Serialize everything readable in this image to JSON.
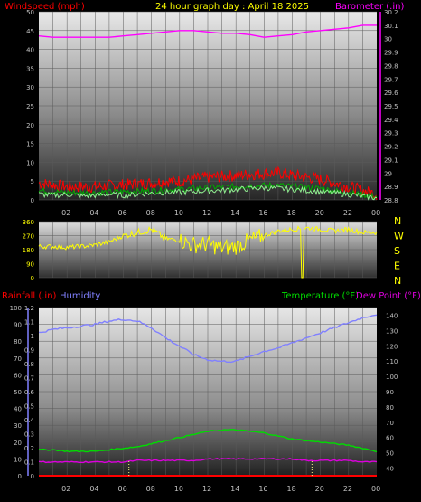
{
  "header": {
    "title": "24 hour graph day : April 18 2025",
    "wind_label": "Windspeed (mph)",
    "baro_label": "Barometer (.in)"
  },
  "lower_header": {
    "rain_label": "Rainfall (.in)",
    "humidity_label": "Humidity",
    "temp_label": "Temperature (°F)",
    "dew_label": "Dew Point (°F)"
  },
  "colors": {
    "wind": "#ff0000",
    "gust": "#ff0000",
    "wind_avg": "#90ee90",
    "baro": "#ff00ff",
    "direction": "#ffff00",
    "humidity": "#8080ff",
    "temperature": "#00dd00",
    "dew": "#dd00dd",
    "rain": "#ff0000",
    "axis_text": "#ffff00",
    "tick_text": "#c0c0c0"
  },
  "x_labels": [
    "02",
    "04",
    "06",
    "08",
    "10",
    "12",
    "14",
    "16",
    "18",
    "20",
    "22",
    "00"
  ],
  "compass": [
    "N",
    "W",
    "S",
    "E",
    "N"
  ],
  "chart_data": [
    {
      "type": "line",
      "name": "wind-barometer",
      "ylabel": "Windspeed (mph)",
      "y2label": "Barometer (.in)",
      "ylim": [
        0,
        50
      ],
      "y2lim": [
        28.8,
        30.2
      ],
      "yticks": [
        0,
        5,
        10,
        15,
        20,
        25,
        30,
        35,
        40,
        45,
        50
      ],
      "y2ticks": [
        "28.8",
        "28.9",
        "29",
        "29.1",
        "29.2",
        "29.3",
        "29.4",
        "29.5",
        "29.6",
        "29.7",
        "29.8",
        "29.9",
        "30",
        "30.1",
        "30.2"
      ],
      "hours": [
        0,
        1,
        2,
        3,
        4,
        5,
        6,
        7,
        8,
        9,
        10,
        11,
        12,
        13,
        14,
        15,
        16,
        17,
        18,
        19,
        20,
        21,
        22,
        23,
        24
      ],
      "series": [
        {
          "key": "barometer",
          "axis": "right",
          "values": [
            30.02,
            30.01,
            30.01,
            30.01,
            30.01,
            30.01,
            30.02,
            30.03,
            30.04,
            30.05,
            30.06,
            30.06,
            30.05,
            30.04,
            30.04,
            30.03,
            30.01,
            30.02,
            30.03,
            30.05,
            30.06,
            30.07,
            30.08,
            30.1,
            30.1
          ]
        },
        {
          "key": "gust",
          "axis": "left",
          "values": [
            4.5,
            4,
            3.5,
            3.5,
            3.5,
            3.8,
            4,
            4.2,
            4.5,
            5,
            5,
            5.5,
            6,
            6.2,
            6.5,
            6.8,
            7,
            7.2,
            6.5,
            6,
            5.5,
            4.5,
            3.5,
            2.5,
            1.5
          ]
        },
        {
          "key": "avg",
          "axis": "left",
          "values": [
            1.5,
            1.2,
            1.5,
            1,
            1.2,
            1.5,
            1.2,
            1.5,
            1.8,
            2,
            2,
            2.2,
            2.5,
            2.5,
            2.8,
            3,
            3.2,
            3,
            2.8,
            2.5,
            2.2,
            1.8,
            1.5,
            1,
            0.5
          ]
        }
      ]
    },
    {
      "type": "line",
      "name": "wind-direction",
      "ylim": [
        0,
        360
      ],
      "yticks": [
        0,
        90,
        180,
        270,
        360
      ],
      "hours": [
        0,
        1,
        2,
        3,
        4,
        5,
        6,
        7,
        8,
        9,
        10,
        11,
        12,
        13,
        14,
        15,
        16,
        17,
        18,
        19,
        20,
        21,
        22,
        23,
        24
      ],
      "values": [
        200,
        200,
        195,
        200,
        210,
        230,
        270,
        290,
        310,
        250,
        240,
        210,
        215,
        190,
        200,
        240,
        270,
        300,
        310,
        320,
        310,
        300,
        310,
        290,
        290
      ]
    },
    {
      "type": "line",
      "name": "rain-humidity-temperature",
      "ylabel": "Humidity",
      "y2label": "Temperature (°F)",
      "ylim": [
        0,
        100
      ],
      "yticks": [
        0,
        10,
        20,
        30,
        40,
        50,
        60,
        70,
        80,
        90,
        100
      ],
      "rainticks": [
        "0",
        "0.1",
        "0.2",
        "0.3",
        "0.4",
        "0.5",
        "0.6",
        "0.7",
        "0.8",
        "0.9",
        "1",
        "1.1",
        "1.2"
      ],
      "y2lim": [
        35,
        145
      ],
      "y2ticks": [
        40,
        50,
        60,
        70,
        80,
        90,
        100,
        110,
        120,
        130,
        140
      ],
      "hours": [
        0,
        1,
        2,
        3,
        4,
        5,
        6,
        7,
        8,
        9,
        10,
        11,
        12,
        13,
        14,
        15,
        16,
        17,
        18,
        19,
        20,
        21,
        22,
        23,
        24
      ],
      "series": [
        {
          "key": "humidity",
          "axis": "left",
          "values": [
            85,
            87,
            88,
            89,
            90,
            92,
            93,
            92,
            88,
            82,
            77,
            72,
            69,
            68,
            68,
            71,
            74,
            76,
            79,
            82,
            85,
            88,
            91,
            94,
            96
          ]
        },
        {
          "key": "temperature",
          "axis": "right",
          "values": [
            52,
            52,
            51,
            51,
            51,
            52,
            53,
            54,
            56,
            58,
            60,
            62,
            64,
            65,
            65,
            64,
            63,
            61,
            59,
            58,
            57,
            56,
            55,
            53,
            51
          ]
        },
        {
          "key": "dew",
          "axis": "right",
          "values": [
            44,
            44,
            44,
            44,
            44,
            44,
            44,
            45,
            45,
            45,
            45,
            45,
            46,
            46,
            46,
            46,
            46,
            46,
            46,
            45,
            45,
            45,
            45,
            44,
            44
          ]
        },
        {
          "key": "rain",
          "axis": "rain",
          "values": [
            0,
            0,
            0,
            0,
            0,
            0,
            0,
            0,
            0,
            0,
            0,
            0,
            0,
            0,
            0,
            0,
            0,
            0,
            0,
            0,
            0,
            0,
            0,
            0,
            0
          ]
        }
      ]
    }
  ]
}
